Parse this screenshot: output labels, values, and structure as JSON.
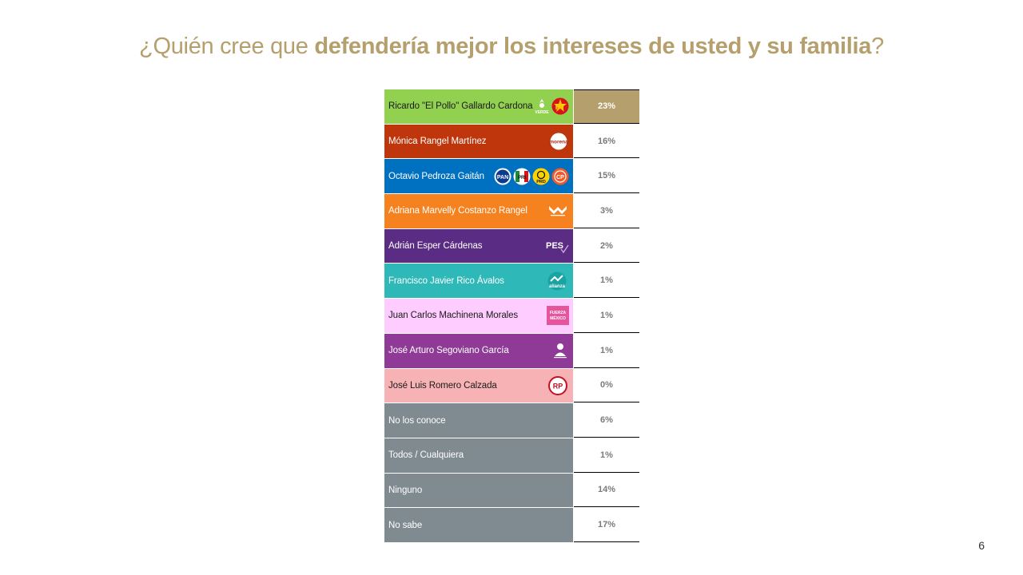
{
  "title": {
    "prefix": "¿Quién cree que ",
    "bold": "defendería mejor los intereses de usted y su familia",
    "suffix": "?"
  },
  "page_number": "6",
  "colors": {
    "title": "#b59f6c",
    "highlight": "#b59f6c",
    "verde_pt": "#92d050",
    "morena": "#c0360c",
    "pan_pri_prd": "#0070c0",
    "mc": "#f5821f",
    "pes": "#5b2c83",
    "nueva_alianza": "#2eb8b8",
    "fuerza_mexico": "#ffccff",
    "redes_sociales": "#8e3a96",
    "rsp": "#f7b2b5",
    "other": "#808a91"
  },
  "chart_data": {
    "type": "table",
    "title": "¿Quién cree que defendería mejor los intereses de usted y su familia?",
    "rows": [
      {
        "label": "Ricardo \"El Pollo\" Gallardo Cardona",
        "value": "23%",
        "color": "#92d050",
        "text_color": "#1a1a1a",
        "logos": [
          "verde-logo",
          "pt-logo"
        ],
        "highlight": true
      },
      {
        "label": "Mónica Rangel Martínez",
        "value": "16%",
        "color": "#c0360c",
        "text_color": "#ffffff",
        "logos": [
          "morena-logo"
        ],
        "highlight": false
      },
      {
        "label": "Octavio Pedroza Gaitán",
        "value": "15%",
        "color": "#0070c0",
        "text_color": "#ffffff",
        "logos": [
          "pan-logo",
          "pri-logo",
          "prd-logo",
          "cp-logo"
        ],
        "highlight": false
      },
      {
        "label": "Adriana Marvelly Costanzo Rangel",
        "value": "3%",
        "color": "#f5821f",
        "text_color": "#ffffff",
        "logos": [
          "mc-logo"
        ],
        "highlight": false
      },
      {
        "label": "Adrián Esper Cárdenas",
        "value": "2%",
        "color": "#5b2c83",
        "text_color": "#ffffff",
        "logos": [
          "pes-logo"
        ],
        "highlight": false
      },
      {
        "label": "Francisco Javier Rico Ávalos",
        "value": "1%",
        "color": "#2eb8b8",
        "text_color": "#ffffff",
        "logos": [
          "alianza-logo"
        ],
        "highlight": false
      },
      {
        "label": "Juan Carlos Machinena Morales",
        "value": "1%",
        "color": "#ffccff",
        "text_color": "#1a1a1a",
        "logos": [
          "fuerza-mexico-logo"
        ],
        "highlight": false
      },
      {
        "label": "José Arturo Segoviano García",
        "value": "1%",
        "color": "#8e3a96",
        "text_color": "#ffffff",
        "logos": [
          "redes-sociales-logo"
        ],
        "highlight": false
      },
      {
        "label": "José Luis Romero Calzada",
        "value": "0%",
        "color": "#f7b2b5",
        "text_color": "#1a1a1a",
        "logos": [
          "rsp-logo"
        ],
        "highlight": false
      },
      {
        "label": "No los conoce",
        "value": "6%",
        "color": "#808a91",
        "text_color": "#ffffff",
        "logos": [],
        "highlight": false
      },
      {
        "label": "Todos / Cualquiera",
        "value": "1%",
        "color": "#808a91",
        "text_color": "#ffffff",
        "logos": [],
        "highlight": false
      },
      {
        "label": "Ninguno",
        "value": "14%",
        "color": "#808a91",
        "text_color": "#ffffff",
        "logos": [],
        "highlight": false
      },
      {
        "label": "No sabe",
        "value": "17%",
        "color": "#808a91",
        "text_color": "#ffffff",
        "logos": [],
        "highlight": false
      }
    ]
  },
  "logo_text": {
    "verde": "VERDE",
    "pt": "PT",
    "morena": "morena",
    "pan": "PAN",
    "pri": "PRI",
    "prd": "PRD",
    "cp": "CP",
    "pes": "PES",
    "alianza": "alianza",
    "fuerza": "FUERZA",
    "mexico": "MÉXICO",
    "rp": "RP"
  }
}
